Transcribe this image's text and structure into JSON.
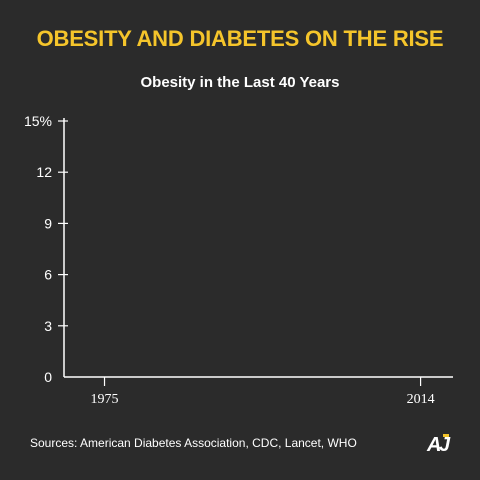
{
  "header": {
    "headline": "OBESITY AND DIABETES ON THE RISE"
  },
  "footer": {
    "sources": "Sources: American Diabetes Association, CDC, Lancet, WHO",
    "logo_text": "AJ"
  },
  "colors": {
    "background": "#2b2b2b",
    "headline": "#f5c52b",
    "text": "#ffffff",
    "logo_accent": "#f5c52b"
  },
  "chart_data": {
    "type": "line",
    "title": "Obesity in the Last 40 Years",
    "xlabel": "",
    "ylabel": "",
    "y_ticks": [
      "0",
      "3",
      "6",
      "9",
      "12",
      "15%"
    ],
    "y_tick_values": [
      0,
      3,
      6,
      9,
      12,
      15
    ],
    "ylim": [
      0,
      15
    ],
    "x_ticks": [
      "1975",
      "2014"
    ],
    "x_tick_values": [
      1975,
      2014
    ],
    "xlim": [
      1970,
      2018
    ],
    "series": [],
    "grid": false,
    "legend": "none"
  }
}
